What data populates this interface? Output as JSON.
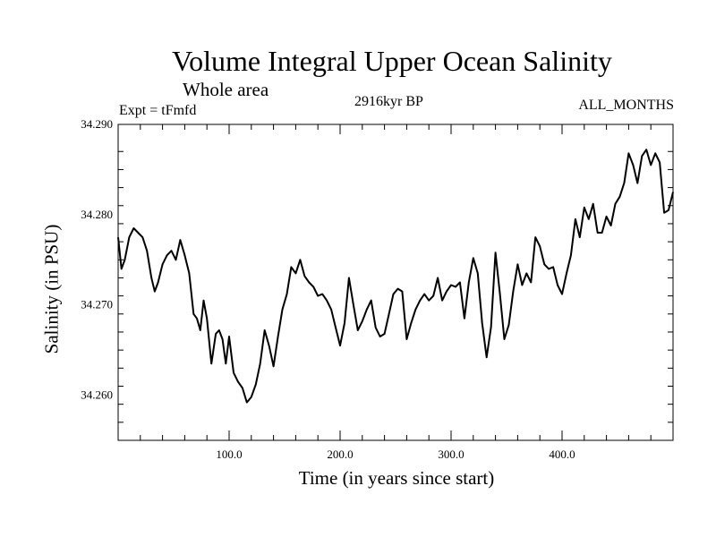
{
  "header": {
    "title": "Volume Integral Upper Ocean Salinity",
    "subtitle": "Whole area",
    "experiment": "Expt = tFmfd",
    "period": "2916kyr BP",
    "months": "ALL_MONTHS"
  },
  "chart_data": {
    "type": "line",
    "title": "Volume Integral Upper Ocean Salinity",
    "xlabel": "Time (in years since start)",
    "ylabel": "Salinity (in PSU)",
    "xlim": [
      0,
      500
    ],
    "ylim": [
      34.255,
      34.29
    ],
    "xticks": [
      100,
      200,
      300,
      400
    ],
    "xtick_labels": [
      "100.0",
      "200.0",
      "300.0",
      "400.0"
    ],
    "yticks": [
      34.26,
      34.27,
      34.28,
      34.29
    ],
    "ytick_labels": [
      "34.260",
      "34.270",
      "34.280",
      "34.290"
    ],
    "grid": false,
    "series": [
      {
        "name": "Salinity",
        "x": [
          0,
          3,
          6,
          10,
          14,
          18,
          22,
          26,
          30,
          33,
          36,
          40,
          44,
          48,
          52,
          56,
          60,
          64,
          68,
          71,
          74,
          77,
          80,
          84,
          88,
          91,
          94,
          97,
          100,
          104,
          108,
          112,
          116,
          120,
          124,
          128,
          132,
          136,
          140,
          144,
          148,
          152,
          156,
          160,
          164,
          168,
          172,
          176,
          180,
          184,
          188,
          192,
          196,
          200,
          204,
          208,
          212,
          216,
          220,
          224,
          228,
          232,
          236,
          240,
          244,
          248,
          252,
          256,
          260,
          264,
          268,
          272,
          276,
          280,
          284,
          288,
          292,
          296,
          300,
          304,
          308,
          312,
          316,
          320,
          324,
          328,
          332,
          336,
          340,
          344,
          348,
          352,
          356,
          360,
          364,
          368,
          372,
          376,
          380,
          384,
          388,
          392,
          396,
          400,
          404,
          408,
          412,
          416,
          420,
          424,
          428,
          432,
          436,
          440,
          444,
          448,
          452,
          456,
          460,
          464,
          468,
          472,
          476,
          480,
          484,
          488,
          492,
          496,
          500
        ],
        "values": [
          34.2775,
          34.274,
          34.275,
          34.2775,
          34.2785,
          34.278,
          34.2775,
          34.276,
          34.273,
          34.2715,
          34.2725,
          34.2745,
          34.2755,
          34.276,
          34.275,
          34.2772,
          34.2755,
          34.2735,
          34.269,
          34.2685,
          34.2672,
          34.2705,
          34.2685,
          34.2635,
          34.2668,
          34.2672,
          34.2662,
          34.2635,
          34.2665,
          34.2625,
          34.2615,
          34.2608,
          34.2592,
          34.2598,
          34.2612,
          34.2635,
          34.2672,
          34.2655,
          34.2632,
          34.2665,
          34.2695,
          34.2712,
          34.2742,
          34.2735,
          34.275,
          34.2732,
          34.2725,
          34.272,
          34.271,
          34.2712,
          34.2705,
          34.2695,
          34.2675,
          34.2655,
          34.268,
          34.273,
          34.27,
          34.2672,
          34.2682,
          34.2695,
          34.2705,
          34.2675,
          34.2665,
          34.2668,
          34.269,
          34.2712,
          34.2718,
          34.2715,
          34.2662,
          34.268,
          34.2695,
          34.2705,
          34.2712,
          34.2705,
          34.271,
          34.273,
          34.2705,
          34.2715,
          34.2722,
          34.272,
          34.2725,
          34.2685,
          34.2725,
          34.2752,
          34.2735,
          34.268,
          34.2642,
          34.2675,
          34.2758,
          34.2712,
          34.2662,
          34.2678,
          34.2715,
          34.2745,
          34.2722,
          34.2735,
          34.2725,
          34.2775,
          34.2765,
          34.2745,
          34.274,
          34.2742,
          34.2722,
          34.2712,
          34.2735,
          34.2755,
          34.2795,
          34.2775,
          34.2808,
          34.2795,
          34.2812,
          34.278,
          34.278,
          34.2798,
          34.2788,
          34.2812,
          34.282,
          34.2835,
          34.2868,
          34.2855,
          34.2835,
          34.2865,
          34.2872,
          34.2855,
          34.2868,
          34.2858,
          34.2802,
          34.2805,
          34.2825
        ]
      }
    ]
  }
}
